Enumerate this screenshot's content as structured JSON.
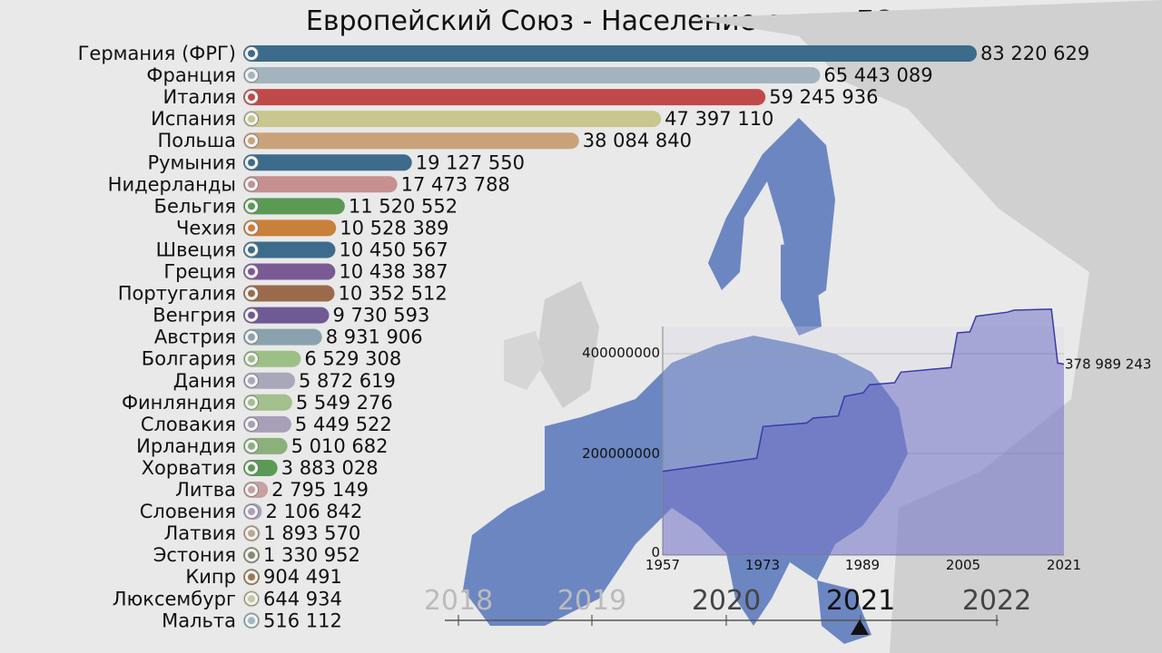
{
  "chart_data": [
    {
      "type": "bar",
      "orientation": "horizontal",
      "title": "Европейский Союз - Население стран ЕС",
      "categories": [
        "Германия (ФРГ)",
        "Франция",
        "Италия",
        "Испания",
        "Польша",
        "Румыния",
        "Нидерланды",
        "Бельгия",
        "Чехия",
        "Швеция",
        "Греция",
        "Португалия",
        "Венгрия",
        "Австрия",
        "Болгария",
        "Дания",
        "Финляндия",
        "Словакия",
        "Ирландия",
        "Хорватия",
        "Литва",
        "Словения",
        "Латвия",
        "Эстония",
        "Кипр",
        "Люксембург",
        "Мальта"
      ],
      "values": [
        83220629,
        65443089,
        59245936,
        47397110,
        38084840,
        19127550,
        17473788,
        11520552,
        10528389,
        10450567,
        10438387,
        10352512,
        9730593,
        8931906,
        6529308,
        5872619,
        5549276,
        5449522,
        5010682,
        3883028,
        2795149,
        2106842,
        1893570,
        1330952,
        904491,
        644934,
        516112
      ],
      "value_labels": [
        "83 220 629",
        "65 443 089",
        "59 245 936",
        "47 397 110",
        "38 084 840",
        "19 127 550",
        "17 473 788",
        "11 520 552",
        "10 528 389",
        "10 450 567",
        "10 438 387",
        "10 352 512",
        "9 730 593",
        "8 931 906",
        "6 529 308",
        "5 872 619",
        "5 549 276",
        "5 449 522",
        "5 010 682",
        "3 883 028",
        "2 795 149",
        "2 106 842",
        "1 893 570",
        "1 330 952",
        "904 491",
        "644 934",
        "516 112"
      ],
      "colors": [
        "#3d6b8c",
        "#a3b4bf",
        "#c04a4a",
        "#c9c68e",
        "#c9a27a",
        "#3d6b8c",
        "#c79090",
        "#5a9a55",
        "#c9803a",
        "#3d6b8c",
        "#7a5a95",
        "#9b6a4a",
        "#6f5a95",
        "#8aa2ad",
        "#9cbf86",
        "#a8a8b8",
        "#a3bf8c",
        "#a8a0b8",
        "#8bb07a",
        "#5a9a55",
        "#c7a0a0",
        "#a8a0b8",
        "#c0a68a",
        "#8a8a70",
        "#9b7a4a",
        "#c7c7a0",
        "#9fb8c0"
      ],
      "xlim": [
        0,
        83220629
      ]
    },
    {
      "type": "area",
      "x_ticks": [
        "1957",
        "1973",
        "1989",
        "2005",
        "2021"
      ],
      "y_ticks": [
        "0",
        "200000000",
        "400000000"
      ],
      "ylim": [
        0,
        450000000
      ],
      "x": [
        1957,
        1958,
        1972,
        1973,
        1980,
        1981,
        1985,
        1986,
        1989,
        1990,
        1994,
        1995,
        2003,
        2004,
        2006,
        2007,
        2012,
        2013,
        2019,
        2020,
        2021
      ],
      "values": [
        166000000,
        168000000,
        192000000,
        255000000,
        262000000,
        272000000,
        276000000,
        315000000,
        322000000,
        338000000,
        342000000,
        363000000,
        372000000,
        441000000,
        443000000,
        474000000,
        482000000,
        486000000,
        488000000,
        381000000,
        378989243
      ],
      "last_value_label": "378 989 243",
      "color": "#3a3aa8"
    }
  ],
  "timeline": {
    "years": [
      "2018",
      "2019",
      "2020",
      "2021",
      "2022"
    ],
    "current": "2021"
  }
}
